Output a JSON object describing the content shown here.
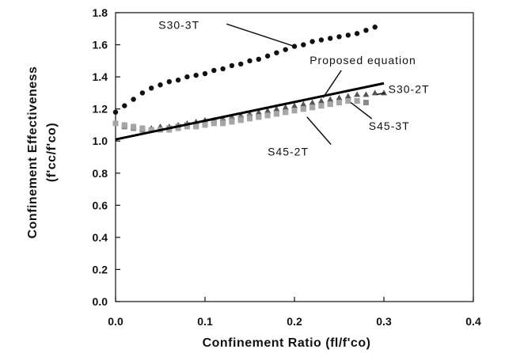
{
  "chart_data": {
    "type": "scatter",
    "xlabel": "Confinement Ratio (fl/f'co)",
    "ylabel_lines": [
      "Confinement Effectiveness",
      "(f'cc/f'co)"
    ],
    "xlim": [
      0.0,
      0.4
    ],
    "ylim": [
      0.0,
      1.8
    ],
    "x_ticks": [
      0.0,
      0.1,
      0.2,
      0.3,
      0.4
    ],
    "x_tick_labels": [
      "0.0",
      "0.1",
      "0.2",
      "0.3",
      "0.4"
    ],
    "y_ticks": [
      0.0,
      0.2,
      0.4,
      0.6,
      0.8,
      1.0,
      1.2,
      1.4,
      1.6,
      1.8
    ],
    "y_tick_labels": [
      "0.0",
      "0.2",
      "0.4",
      "0.6",
      "0.8",
      "1.0",
      "1.2",
      "1.4",
      "1.6",
      "1.8"
    ],
    "grid": false,
    "series": [
      {
        "name": "S30-3T",
        "marker": "dot",
        "color": "#111111",
        "x": [
          0.0,
          0.01,
          0.02,
          0.03,
          0.04,
          0.05,
          0.06,
          0.07,
          0.08,
          0.09,
          0.1,
          0.11,
          0.12,
          0.13,
          0.14,
          0.15,
          0.16,
          0.17,
          0.18,
          0.19,
          0.2,
          0.21,
          0.22,
          0.23,
          0.24,
          0.25,
          0.26,
          0.27,
          0.28,
          0.29
        ],
        "y": [
          1.18,
          1.22,
          1.26,
          1.3,
          1.33,
          1.35,
          1.37,
          1.38,
          1.4,
          1.41,
          1.42,
          1.44,
          1.45,
          1.47,
          1.48,
          1.5,
          1.51,
          1.53,
          1.55,
          1.57,
          1.59,
          1.6,
          1.62,
          1.63,
          1.64,
          1.65,
          1.66,
          1.67,
          1.69,
          1.71
        ]
      },
      {
        "name": "S30-2T",
        "marker": "triangle",
        "color": "#555555",
        "x": [
          0.01,
          0.02,
          0.03,
          0.04,
          0.05,
          0.06,
          0.07,
          0.08,
          0.09,
          0.1,
          0.11,
          0.12,
          0.13,
          0.14,
          0.15,
          0.16,
          0.17,
          0.18,
          0.19,
          0.2,
          0.21,
          0.22,
          0.23,
          0.24,
          0.25,
          0.26,
          0.27,
          0.28,
          0.29,
          0.3
        ],
        "y": [
          1.1,
          1.09,
          1.08,
          1.08,
          1.09,
          1.09,
          1.1,
          1.11,
          1.12,
          1.13,
          1.13,
          1.14,
          1.15,
          1.16,
          1.17,
          1.18,
          1.19,
          1.2,
          1.21,
          1.22,
          1.23,
          1.24,
          1.25,
          1.26,
          1.27,
          1.28,
          1.29,
          1.29,
          1.3,
          1.3
        ]
      },
      {
        "name": "S45-3T",
        "marker": "square",
        "color": "#8a8a8a",
        "x": [
          0.01,
          0.02,
          0.03,
          0.04,
          0.05,
          0.06,
          0.07,
          0.08,
          0.09,
          0.1,
          0.11,
          0.12,
          0.13,
          0.14,
          0.15,
          0.16,
          0.17,
          0.18,
          0.19,
          0.2,
          0.21,
          0.22,
          0.23,
          0.24,
          0.25,
          0.26,
          0.27,
          0.28
        ],
        "y": [
          1.09,
          1.08,
          1.07,
          1.07,
          1.07,
          1.08,
          1.09,
          1.1,
          1.1,
          1.11,
          1.12,
          1.12,
          1.13,
          1.14,
          1.15,
          1.15,
          1.16,
          1.17,
          1.18,
          1.19,
          1.2,
          1.21,
          1.22,
          1.23,
          1.24,
          1.25,
          1.25,
          1.24
        ]
      },
      {
        "name": "S45-2T",
        "marker": "square",
        "color": "#a6a6a6",
        "x": [
          0.0,
          0.01,
          0.02,
          0.03,
          0.04,
          0.05,
          0.06,
          0.07,
          0.08,
          0.09,
          0.1,
          0.11,
          0.12,
          0.13,
          0.14,
          0.15,
          0.16,
          0.17,
          0.18,
          0.19,
          0.2,
          0.21,
          0.22,
          0.23,
          0.24,
          0.25,
          0.26,
          0.27
        ],
        "y": [
          1.11,
          1.1,
          1.09,
          1.08,
          1.07,
          1.07,
          1.07,
          1.08,
          1.09,
          1.09,
          1.1,
          1.11,
          1.11,
          1.12,
          1.13,
          1.14,
          1.15,
          1.16,
          1.17,
          1.18,
          1.19,
          1.2,
          1.21,
          1.22,
          1.23,
          1.24,
          1.25,
          1.25
        ]
      },
      {
        "name": "Proposed equation",
        "marker": "line",
        "color": "#000000",
        "x": [
          0.0,
          0.3
        ],
        "y": [
          1.01,
          1.36
        ]
      }
    ],
    "annotations": [
      {
        "text": "S30-3T",
        "at": [
          0.048,
          1.7
        ],
        "points_to": [
          0.2,
          1.59
        ]
      },
      {
        "text": "Proposed equation",
        "at": [
          0.217,
          1.48
        ],
        "points_to": [
          0.232,
          1.27
        ]
      },
      {
        "text": "S30-2T",
        "at": [
          0.305,
          1.3
        ],
        "points_to": [
          0.292,
          1.29
        ]
      },
      {
        "text": "S45-3T",
        "at": [
          0.283,
          1.07
        ],
        "points_to": [
          0.263,
          1.24
        ]
      },
      {
        "text": "S45-2T",
        "at": [
          0.17,
          0.91
        ],
        "points_to": [
          0.214,
          1.15
        ]
      }
    ]
  }
}
